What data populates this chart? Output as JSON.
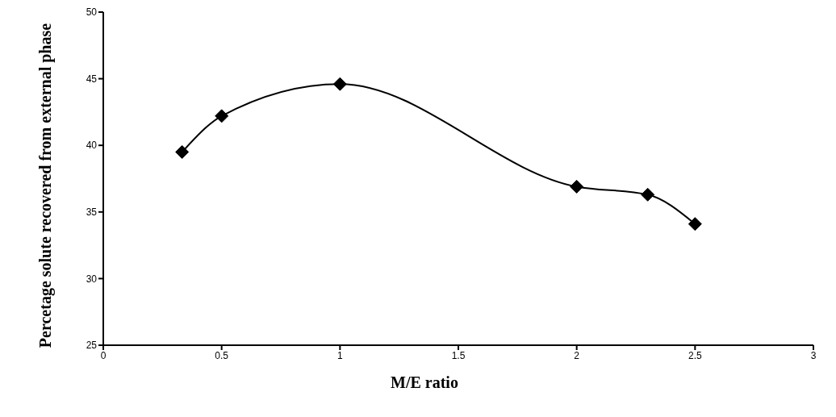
{
  "chart_data": {
    "type": "line",
    "xlabel": "M/E ratio",
    "ylabel": "Percetage solute recovered  from external phase",
    "x": [
      0.333,
      0.5,
      1,
      2,
      2.3,
      2.5
    ],
    "series": [
      {
        "color": "#000000",
        "values": [
          39.5,
          42.2,
          44.6,
          36.9,
          36.3,
          34.1
        ]
      }
    ],
    "xlim": [
      0,
      3
    ],
    "xticks": [
      0,
      0.5,
      1,
      1.5,
      2,
      2.5,
      3
    ],
    "ylim": [
      25,
      50
    ],
    "yticks": [
      25,
      30,
      35,
      40,
      45,
      50
    ],
    "grid": false,
    "legend": false,
    "marker": "diamond",
    "line_style": "solid"
  }
}
